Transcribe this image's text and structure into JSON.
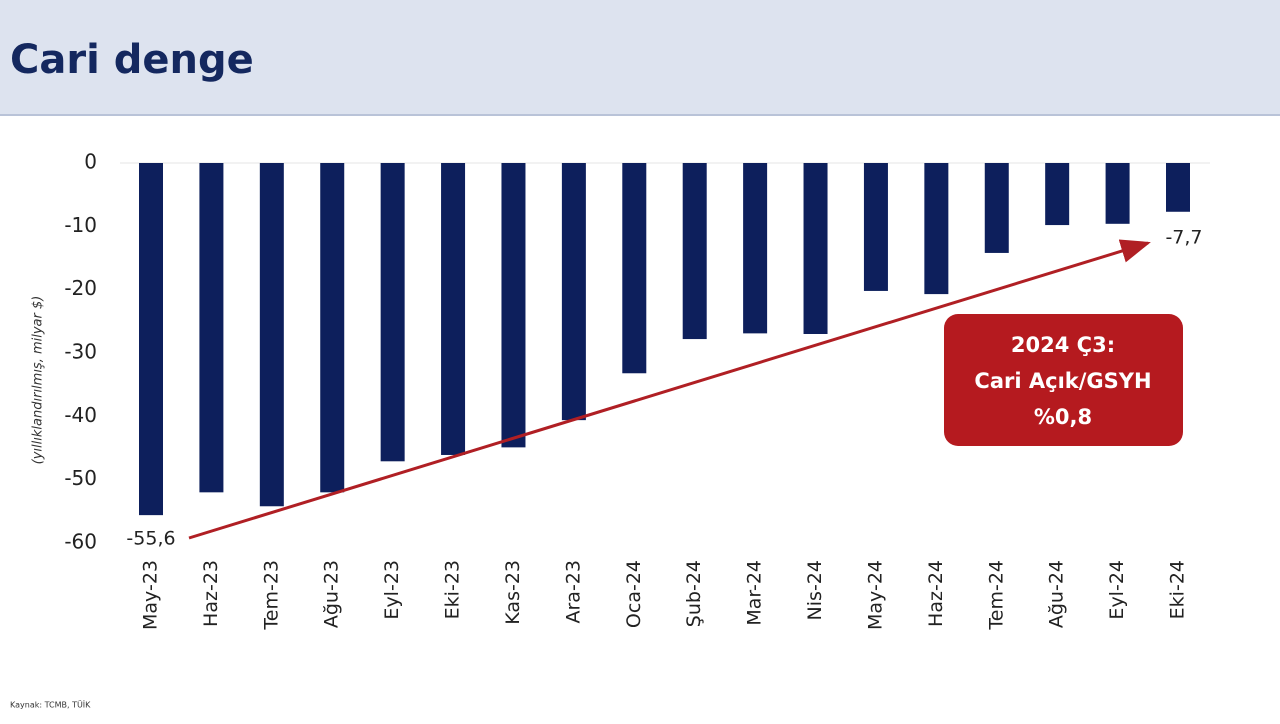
{
  "chart_data": {
    "type": "bar",
    "title": "Cari denge",
    "ylabel": "(yıllıklandırılmış, milyar $)",
    "categories": [
      "May-23",
      "Haz-23",
      "Tem-23",
      "Ağu-23",
      "Eyl-23",
      "Eki-23",
      "Kas-23",
      "Ara-23",
      "Oca-24",
      "Şub-24",
      "Mar-24",
      "Nis-24",
      "May-24",
      "Haz-24",
      "Tem-24",
      "Ağu-24",
      "Eyl-24",
      "Eki-24"
    ],
    "values": [
      -55.6,
      -52.0,
      -54.2,
      -52.0,
      -47.1,
      -46.1,
      -44.9,
      -40.6,
      -33.2,
      -27.8,
      -26.9,
      -27.0,
      -20.2,
      -20.7,
      -14.2,
      -9.8,
      -9.6,
      -7.7
    ],
    "value_labels": [
      "-55,6",
      null,
      null,
      null,
      null,
      null,
      null,
      null,
      null,
      null,
      null,
      null,
      null,
      null,
      null,
      null,
      null,
      "-7,7"
    ],
    "color": "#0d1f5c",
    "ylim": [
      -60,
      0
    ],
    "yticks": [
      0,
      -10,
      -20,
      -30,
      -40,
      -50,
      -60
    ],
    "grid": false,
    "annotation": [
      "2024 Ç3:",
      "Cari Açık/GSYH",
      "%0,8"
    ],
    "source": "Kaynak: TCMB, TÜİK"
  }
}
